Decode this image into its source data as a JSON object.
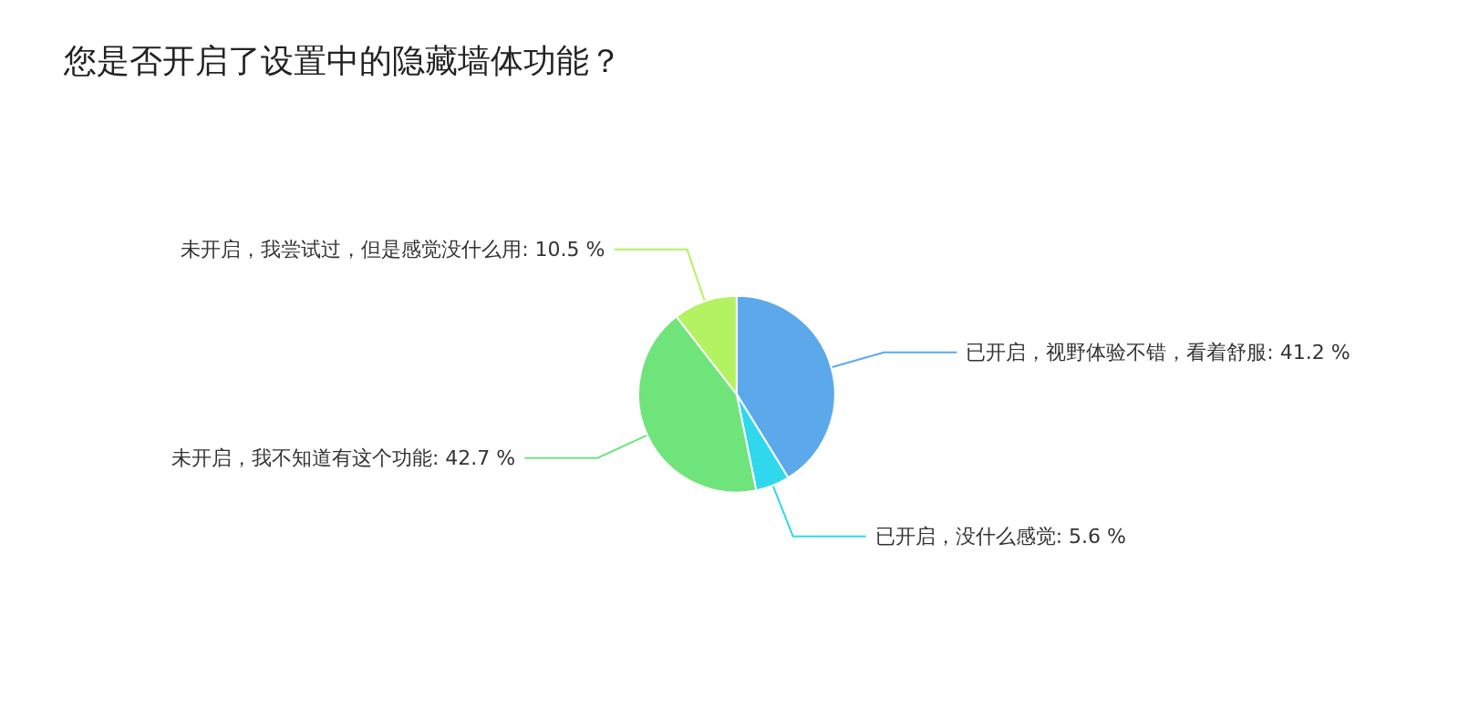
{
  "chart_data": {
    "type": "pie",
    "title": "您是否开启了设置中的隐藏墙体功能？",
    "categories": [
      "已开启，视野体验不错，看着舒服",
      "已开启，没什么感觉",
      "未开启，我不知道有这个功能",
      "未开启，我尝试过，但是感觉没什么用"
    ],
    "values": [
      41.2,
      5.6,
      42.7,
      10.5
    ],
    "value_labels": [
      "41.2 %",
      "5.6 %",
      "42.7 %",
      "10.5 %"
    ],
    "colors": [
      "#5ba9ea",
      "#30d8ee",
      "#6fe47b",
      "#b3f260"
    ],
    "legend": false
  }
}
